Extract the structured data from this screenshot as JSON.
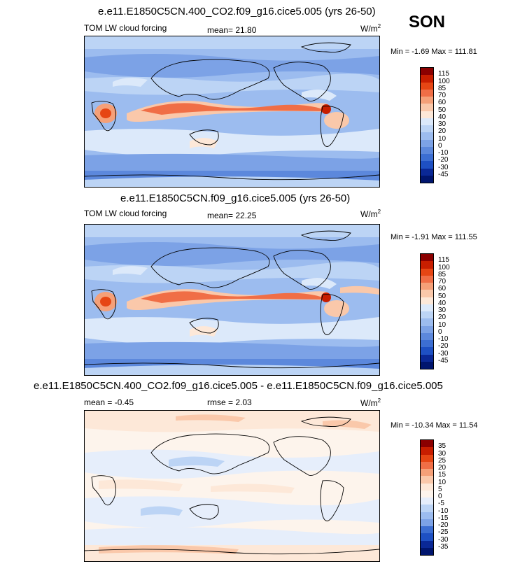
{
  "season": "SON",
  "panels": [
    {
      "title": "e.e11.E1850C5CN.400_CO2.f09_g16.cice5.005 (yrs 26-50)",
      "left_label": "TOM LW cloud forcing",
      "center_label": "mean=  21.80",
      "units": "W/m",
      "units_sup": "2",
      "minmax": "Min =  -1.69 Max = 111.81",
      "levels": [
        "115",
        "100",
        "85",
        "70",
        "60",
        "50",
        "40",
        "30",
        "20",
        "10",
        "0",
        "-10",
        "-20",
        "-30",
        "-45"
      ],
      "colors": [
        "#8b0000",
        "#c81e00",
        "#e64614",
        "#f06e46",
        "#f5a078",
        "#fac8aa",
        "#fde8d8",
        "#dce9fa",
        "#bcd4f5",
        "#9cbcef",
        "#7ca2e6",
        "#5c88dc",
        "#3c6ed2",
        "#1e50c3",
        "#0a2896",
        "#00156e"
      ]
    },
    {
      "title": "e.e11.E1850C5CN.f09_g16.cice5.005 (yrs 26-50)",
      "left_label": "TOM LW cloud forcing",
      "center_label": "mean=  22.25",
      "units": "W/m",
      "units_sup": "2",
      "minmax": "Min =  -1.91 Max = 111.55",
      "levels": [
        "115",
        "100",
        "85",
        "70",
        "60",
        "50",
        "40",
        "30",
        "20",
        "10",
        "0",
        "-10",
        "-20",
        "-30",
        "-45"
      ],
      "colors": [
        "#8b0000",
        "#c81e00",
        "#e64614",
        "#f06e46",
        "#f5a078",
        "#fac8aa",
        "#fde8d8",
        "#dce9fa",
        "#bcd4f5",
        "#9cbcef",
        "#7ca2e6",
        "#5c88dc",
        "#3c6ed2",
        "#1e50c3",
        "#0a2896",
        "#00156e"
      ]
    },
    {
      "title": "e.e11.E1850C5CN.400_CO2.f09_g16.cice5.005 - e.e11.E1850C5CN.f09_g16.cice5.005",
      "left_label": "mean =  -0.45",
      "center_label": "rmse =   2.03",
      "units": "W/m",
      "units_sup": "2",
      "minmax": "Min = -10.34 Max =  11.54",
      "levels": [
        "35",
        "30",
        "25",
        "20",
        "15",
        "10",
        "5",
        "0",
        "-5",
        "-10",
        "-15",
        "-20",
        "-25",
        "-30",
        "-35"
      ],
      "colors": [
        "#8b0000",
        "#c81e00",
        "#e64614",
        "#f06e46",
        "#f5a078",
        "#fac8aa",
        "#fde8d8",
        "#fdf4ec",
        "#e6eefb",
        "#bcd4f5",
        "#9cbcef",
        "#7ca2e6",
        "#3c6ed2",
        "#1e50c3",
        "#0a2896",
        "#00156e"
      ]
    }
  ],
  "chart_data": [
    {
      "type": "heatmap",
      "title": "e.e11.E1850C5CN.400_CO2.f09_g16.cice5.005 (yrs 26-50)",
      "variable": "TOM LW cloud forcing",
      "units": "W/m2",
      "mean": 21.8,
      "min": -1.69,
      "max": 111.81,
      "contour_levels": [
        -45,
        -30,
        -20,
        -10,
        0,
        10,
        20,
        30,
        40,
        50,
        60,
        70,
        85,
        100,
        115
      ]
    },
    {
      "type": "heatmap",
      "title": "e.e11.E1850C5CN.f09_g16.cice5.005 (yrs 26-50)",
      "variable": "TOM LW cloud forcing",
      "units": "W/m2",
      "mean": 22.25,
      "min": -1.91,
      "max": 111.55,
      "contour_levels": [
        -45,
        -30,
        -20,
        -10,
        0,
        10,
        20,
        30,
        40,
        50,
        60,
        70,
        85,
        100,
        115
      ]
    },
    {
      "type": "heatmap",
      "title": "e.e11.E1850C5CN.400_CO2.f09_g16.cice5.005 - e.e11.E1850C5CN.f09_g16.cice5.005",
      "units": "W/m2",
      "mean": -0.45,
      "rmse": 2.03,
      "min": -10.34,
      "max": 11.54,
      "contour_levels": [
        -35,
        -30,
        -25,
        -20,
        -15,
        -10,
        -5,
        0,
        5,
        10,
        15,
        20,
        25,
        30,
        35
      ]
    }
  ]
}
